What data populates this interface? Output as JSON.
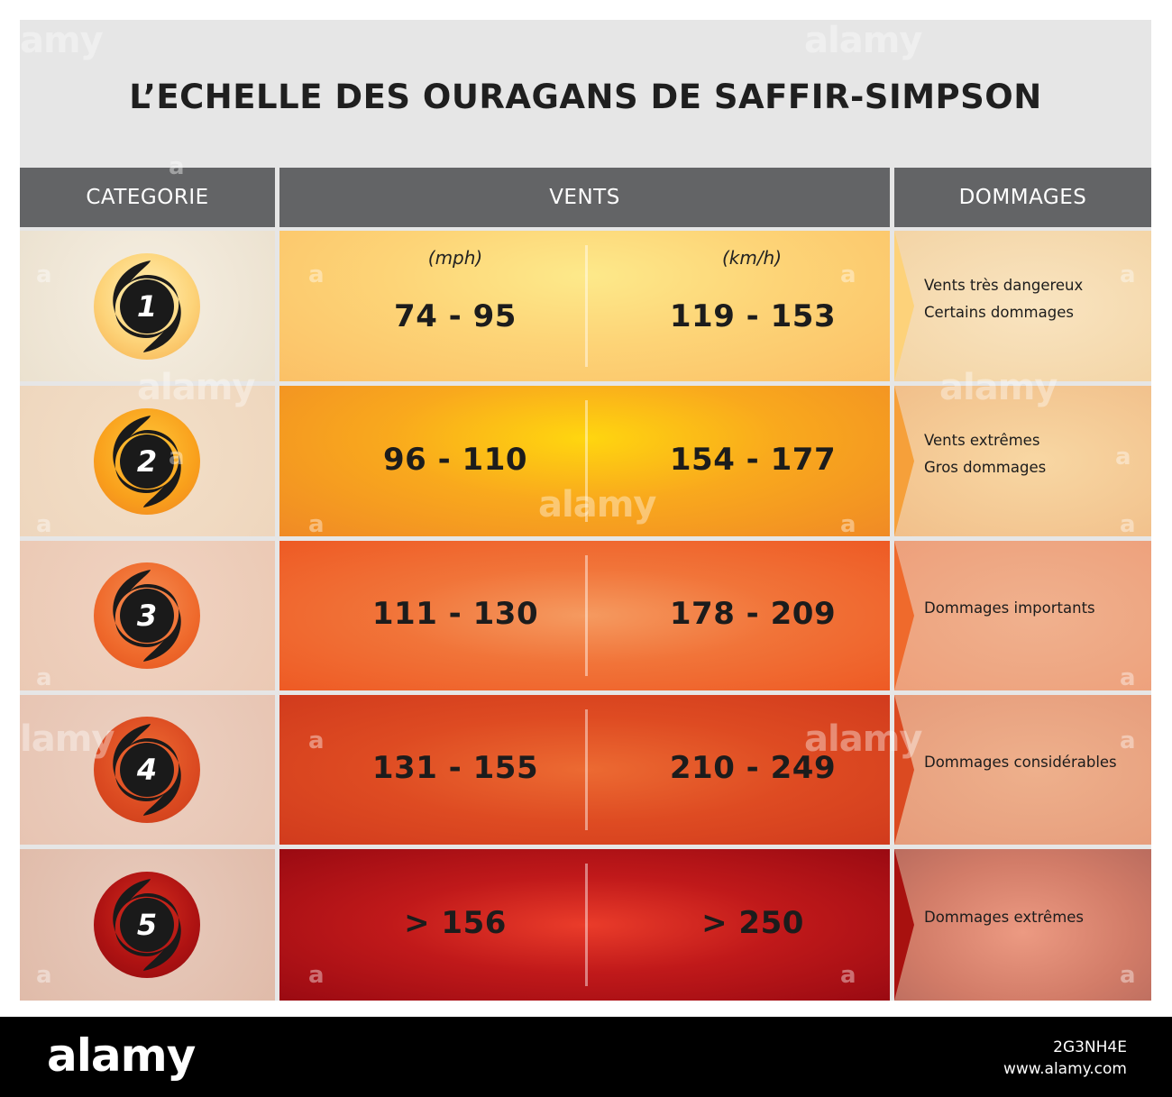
{
  "title": "L’ECHELLE DES OURAGANS DE SAFFIR-SIMPSON",
  "headers": {
    "category": "CATEGORIE",
    "winds": "VENTS",
    "damage": "DOMMAGES"
  },
  "units": {
    "mph": "(mph)",
    "kmh": "(km/h)"
  },
  "rows": [
    {
      "category": "1",
      "mph": "74 - 95",
      "kmh": "119 - 153",
      "damage": [
        "Vents très dangereux",
        "Certains dommages"
      ]
    },
    {
      "category": "2",
      "mph": "96 - 110",
      "kmh": "154 - 177",
      "damage": [
        "Vents extrêmes",
        "Gros dommages"
      ]
    },
    {
      "category": "3",
      "mph": "111 - 130",
      "kmh": "178 - 209",
      "damage": [
        "Dommages importants"
      ]
    },
    {
      "category": "4",
      "mph": "131 - 155",
      "kmh": "210 - 249",
      "damage": [
        "Dommages considérables"
      ]
    },
    {
      "category": "5",
      "mph": "> 156",
      "kmh": "> 250",
      "damage": [
        "Dommages extrêmes"
      ]
    }
  ],
  "colors": {
    "header_bg": "#636466",
    "title_bg": "#e6e6e6",
    "cat1": "#fdd06e",
    "cat2": "#f7a21b",
    "cat3": "#ef6a2c",
    "cat4": "#d94520",
    "cat5": "#a8110f"
  },
  "icons": {
    "category_badge": "hurricane-icon"
  },
  "watermark": {
    "brand": "alamy",
    "image_id": "2G3NH4E",
    "site": "www.alamy.com"
  }
}
